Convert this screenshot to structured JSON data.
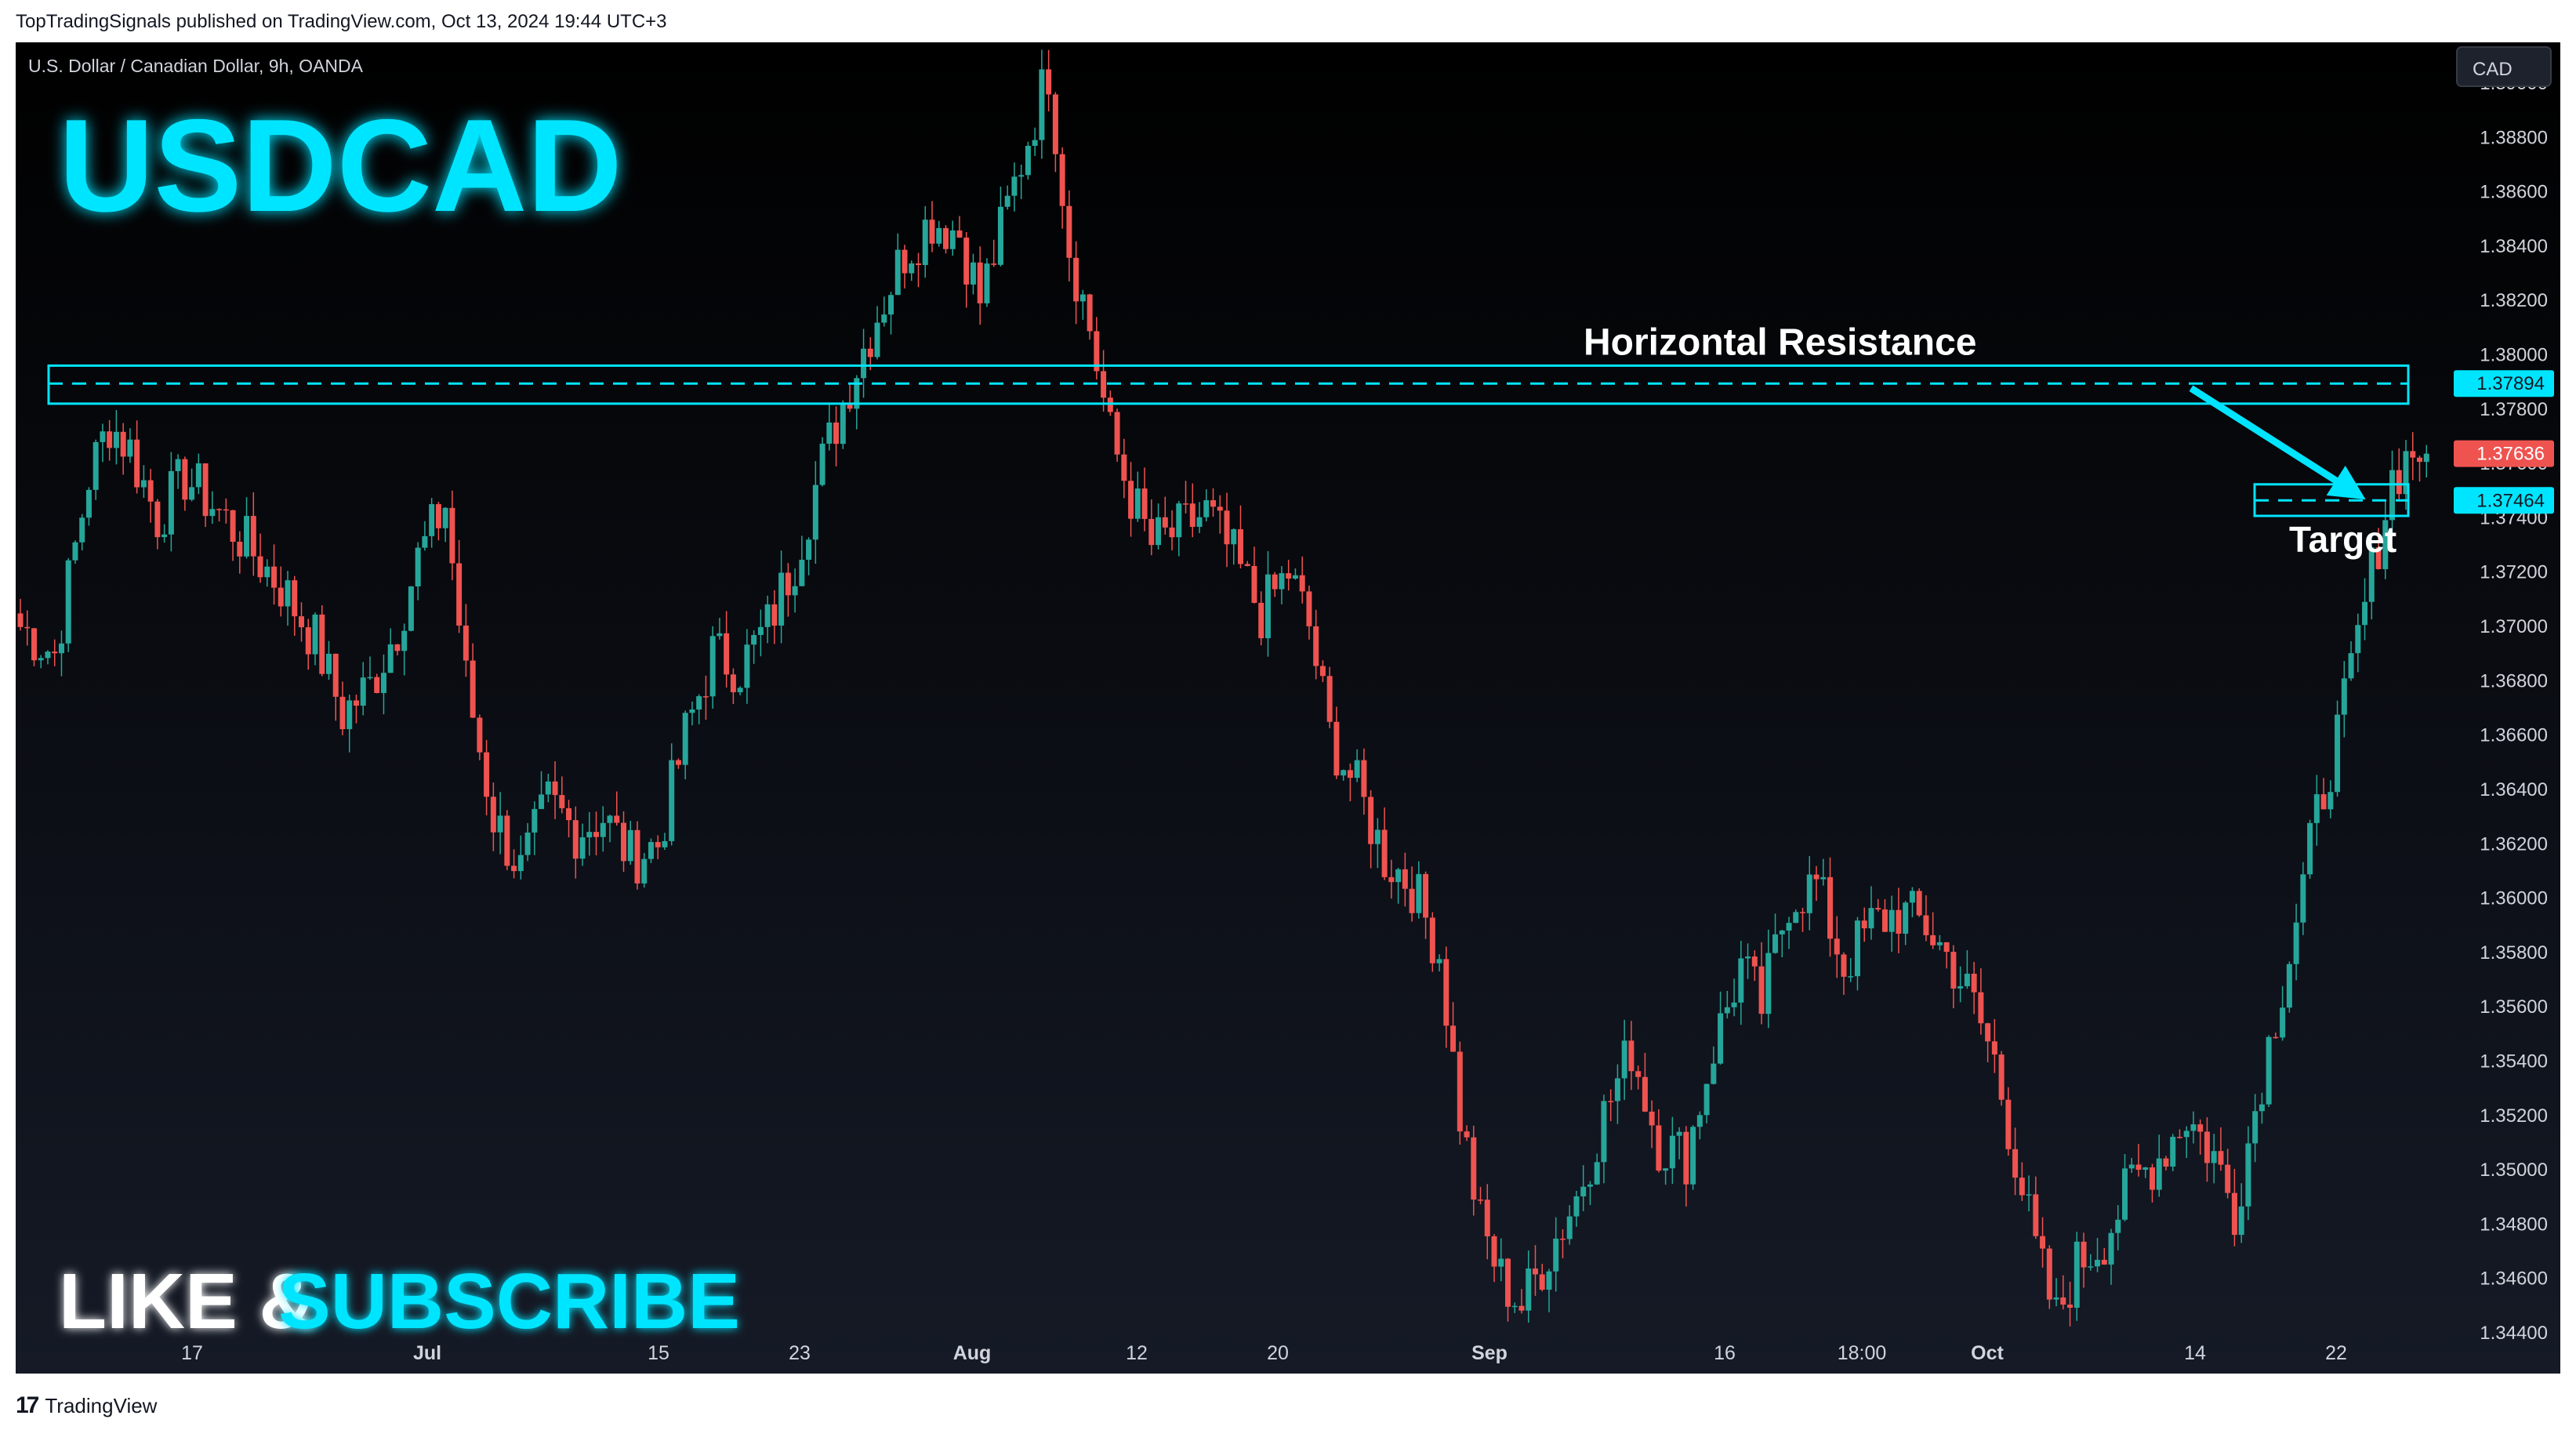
{
  "header": {
    "published_text": "TopTradingSignals published on TradingView.com, Oct 13, 2024 19:44 UTC+3"
  },
  "footer": {
    "brand": "TradingView"
  },
  "symbol_info": "U.S. Dollar / Canadian Dollar, 9h, OANDA",
  "currency_label": "CAD",
  "overlay": {
    "big_title": "USDCAD",
    "like_text": "LIKE &",
    "subscribe_text": "SUBSCRIBE"
  },
  "annotations": {
    "resistance_label": "Horizontal Resistance",
    "target_label": "Target"
  },
  "colors": {
    "background": "#131722",
    "up": "#26a69a",
    "down": "#ef5350",
    "accent": "#00e5ff",
    "text": "#d1d4dc"
  },
  "chart_data": {
    "type": "candlestick",
    "title": "U.S. Dollar / Canadian Dollar, 9h, OANDA",
    "ylim": [
      1.3425,
      1.3915
    ],
    "y_ticks": [
      "1.34400",
      "1.34600",
      "1.34800",
      "1.35000",
      "1.35200",
      "1.35400",
      "1.35600",
      "1.35800",
      "1.36000",
      "1.36200",
      "1.36400",
      "1.36600",
      "1.36800",
      "1.37000",
      "1.37200",
      "1.37400",
      "1.37600",
      "1.37800",
      "1.38000",
      "1.38200",
      "1.38400",
      "1.38600",
      "1.38800",
      "1.39000"
    ],
    "x_ticks": [
      "17",
      "Jul",
      "15",
      "23",
      "Aug",
      "12",
      "20",
      "Sep",
      "16",
      "18:00",
      "Oct",
      "14",
      "22"
    ],
    "price_labels": [
      {
        "value": "1.37894",
        "role": "resistance"
      },
      {
        "value": "1.37636",
        "role": "last-price"
      },
      {
        "value": "1.37464",
        "role": "target"
      }
    ],
    "resistance_zone": [
      1.3782,
      1.3796
    ],
    "resistance_level": 1.37894,
    "target_zone": [
      1.3743,
      1.375
    ],
    "target_level": 1.37464,
    "last_price": 1.37636,
    "path_points": [
      [
        0,
        1.37
      ],
      [
        5,
        1.369
      ],
      [
        10,
        1.3755
      ],
      [
        13,
        1.3775
      ],
      [
        16,
        1.3765
      ],
      [
        20,
        1.374
      ],
      [
        24,
        1.3755
      ],
      [
        28,
        1.3745
      ],
      [
        33,
        1.373
      ],
      [
        38,
        1.3715
      ],
      [
        43,
        1.3695
      ],
      [
        47,
        1.3668
      ],
      [
        51,
        1.3678
      ],
      [
        55,
        1.37
      ],
      [
        58,
        1.3725
      ],
      [
        62,
        1.3745
      ],
      [
        65,
        1.368
      ],
      [
        69,
        1.363
      ],
      [
        73,
        1.361
      ],
      [
        77,
        1.3635
      ],
      [
        81,
        1.3625
      ],
      [
        85,
        1.363
      ],
      [
        89,
        1.3615
      ],
      [
        93,
        1.362
      ],
      [
        97,
        1.366
      ],
      [
        101,
        1.369
      ],
      [
        105,
        1.3685
      ],
      [
        109,
        1.37
      ],
      [
        113,
        1.3725
      ],
      [
        117,
        1.376
      ],
      [
        121,
        1.379
      ],
      [
        125,
        1.3815
      ],
      [
        129,
        1.3838
      ],
      [
        133,
        1.385
      ],
      [
        137,
        1.3845
      ],
      [
        140,
        1.382
      ],
      [
        143,
        1.3845
      ],
      [
        147,
        1.388
      ],
      [
        150,
        1.3905
      ],
      [
        153,
        1.384
      ],
      [
        156,
        1.381
      ],
      [
        159,
        1.377
      ],
      [
        162,
        1.3748
      ],
      [
        165,
        1.373
      ],
      [
        169,
        1.3735
      ],
      [
        173,
        1.3742
      ],
      [
        177,
        1.3725
      ],
      [
        181,
        1.3705
      ],
      [
        185,
        1.372
      ],
      [
        188,
        1.37
      ],
      [
        191,
        1.366
      ],
      [
        195,
        1.364
      ],
      [
        199,
        1.3615
      ],
      [
        203,
        1.3605
      ],
      [
        207,
        1.358
      ],
      [
        210,
        1.352
      ],
      [
        213,
        1.348
      ],
      [
        216,
        1.346
      ],
      [
        219,
        1.345
      ],
      [
        223,
        1.347
      ],
      [
        227,
        1.349
      ],
      [
        231,
        1.352
      ],
      [
        235,
        1.3545
      ],
      [
        239,
        1.351
      ],
      [
        243,
        1.3505
      ],
      [
        247,
        1.3545
      ],
      [
        251,
        1.3575
      ],
      [
        254,
        1.356
      ],
      [
        258,
        1.36
      ],
      [
        262,
        1.3605
      ],
      [
        266,
        1.3575
      ],
      [
        270,
        1.359
      ],
      [
        274,
        1.3595
      ],
      [
        278,
        1.359
      ],
      [
        282,
        1.3575
      ],
      [
        285,
        1.356
      ],
      [
        288,
        1.354
      ],
      [
        291,
        1.3505
      ],
      [
        294,
        1.347
      ],
      [
        297,
        1.3445
      ],
      [
        300,
        1.3465
      ],
      [
        304,
        1.3475
      ],
      [
        308,
        1.3495
      ],
      [
        312,
        1.3505
      ],
      [
        316,
        1.352
      ],
      [
        320,
        1.3505
      ],
      [
        323,
        1.3485
      ],
      [
        327,
        1.3535
      ],
      [
        331,
        1.358
      ],
      [
        335,
        1.363
      ],
      [
        339,
        1.367
      ],
      [
        343,
        1.372
      ],
      [
        346,
        1.3755
      ],
      [
        349,
        1.3765
      ]
    ]
  }
}
